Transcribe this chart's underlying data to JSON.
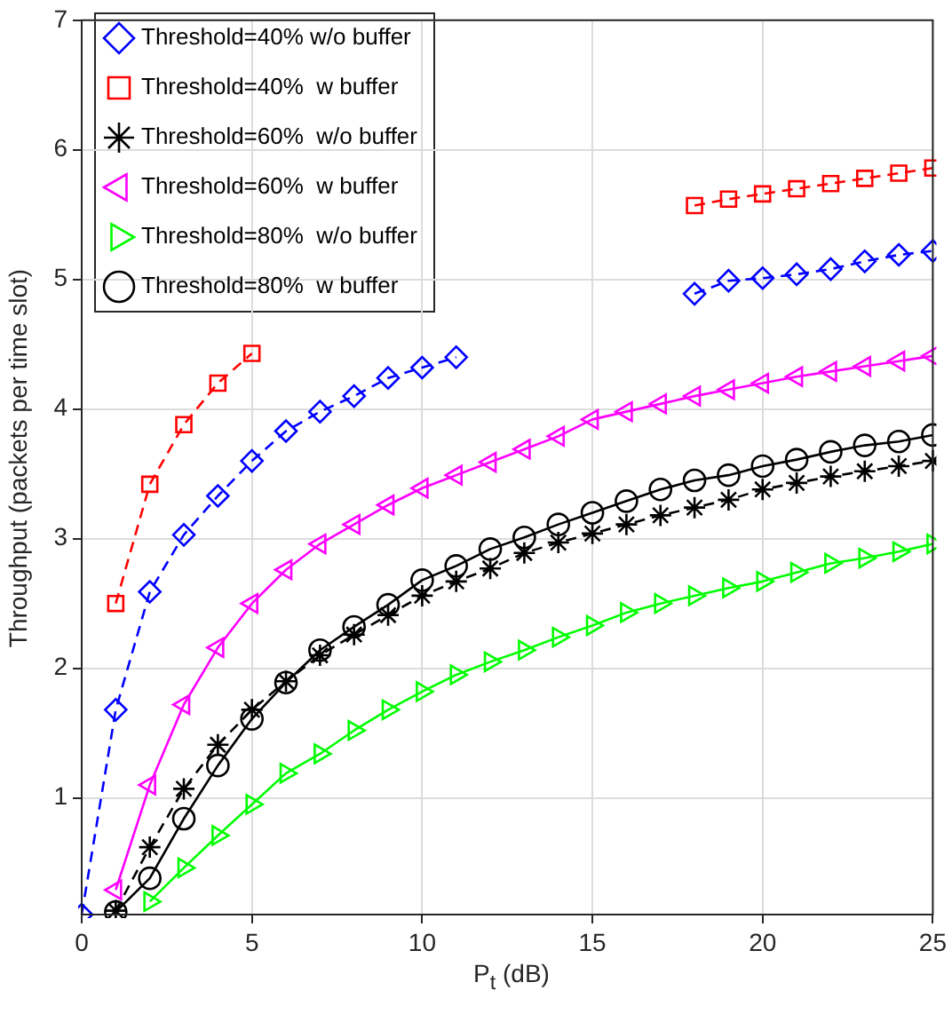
{
  "chart_data": {
    "type": "line",
    "xlabel": "P$_{t}$ (dB)",
    "ylabel": "Throughput (packets per time slot)",
    "x": [
      0,
      1,
      2,
      3,
      4,
      5,
      6,
      7,
      8,
      9,
      10,
      11,
      12,
      13,
      14,
      15,
      16,
      17,
      18,
      19,
      20,
      21,
      22,
      23,
      24,
      25
    ],
    "xlim": [
      0,
      25
    ],
    "xticks": [
      0,
      5,
      10,
      15,
      20,
      25
    ],
    "ylim": [
      0.1,
      7
    ],
    "yticks": [
      1,
      2,
      3,
      4,
      5,
      6,
      7
    ],
    "grid": true,
    "legend": "top left",
    "series": [
      {
        "name": "Threshold=40% w/o buffer",
        "color": "#0000ff",
        "marker": "diamond",
        "line_style": "dashed",
        "values": [
          0.1,
          1.68,
          2.59,
          3.03,
          3.33,
          3.6,
          3.83,
          3.98,
          4.1,
          4.24,
          4.32,
          4.4,
          null,
          null,
          null,
          null,
          null,
          null,
          4.89,
          4.99,
          5.01,
          5.04,
          5.08,
          5.14,
          5.19,
          5.22
        ]
      },
      {
        "name": "Threshold=40%  w buffer",
        "color": "#ff0000",
        "marker": "square",
        "line_style": "dashed",
        "values": [
          null,
          2.5,
          3.42,
          3.88,
          4.2,
          4.43,
          null,
          null,
          null,
          null,
          null,
          null,
          null,
          null,
          null,
          null,
          null,
          null,
          5.57,
          5.62,
          5.66,
          5.7,
          5.74,
          5.78,
          5.82,
          5.86
        ]
      },
      {
        "name": "Threshold=60%  w/o buffer",
        "color": "#000000",
        "marker": "cross",
        "line_style": "dashed",
        "values": [
          null,
          0.13,
          0.62,
          1.07,
          1.41,
          1.68,
          1.9,
          2.1,
          2.26,
          2.41,
          2.56,
          2.67,
          2.77,
          2.89,
          2.97,
          3.04,
          3.11,
          3.18,
          3.24,
          3.3,
          3.38,
          3.43,
          3.48,
          3.52,
          3.56,
          3.6
        ]
      },
      {
        "name": "Threshold=60%  w buffer",
        "color": "#ff00ff",
        "marker": "triangle-left",
        "line_style": "solid",
        "values": [
          null,
          0.29,
          1.1,
          1.72,
          2.16,
          2.5,
          2.76,
          2.96,
          3.11,
          3.26,
          3.39,
          3.49,
          3.59,
          3.69,
          3.79,
          3.92,
          3.98,
          4.04,
          4.1,
          4.15,
          4.2,
          4.25,
          4.29,
          4.33,
          4.37,
          4.41
        ]
      },
      {
        "name": "Threshold=80%  w/o buffer",
        "color": "#00ff00",
        "marker": "triangle-right",
        "line_style": "solid",
        "values": [
          null,
          null,
          0.2,
          0.46,
          0.71,
          0.95,
          1.19,
          1.34,
          1.52,
          1.68,
          1.82,
          1.95,
          2.05,
          2.14,
          2.24,
          2.33,
          2.43,
          2.5,
          2.56,
          2.62,
          2.67,
          2.74,
          2.81,
          2.85,
          2.9,
          2.96
        ]
      },
      {
        "name": "Threshold=80%  w buffer",
        "color": "#000000",
        "marker": "circle",
        "line_style": "solid",
        "values": [
          null,
          0.12,
          0.38,
          0.84,
          1.25,
          1.61,
          1.89,
          2.14,
          2.32,
          2.49,
          2.68,
          2.79,
          2.92,
          3.01,
          3.11,
          3.2,
          3.29,
          3.38,
          3.45,
          3.49,
          3.56,
          3.61,
          3.67,
          3.72,
          3.75,
          3.8
        ]
      }
    ]
  }
}
